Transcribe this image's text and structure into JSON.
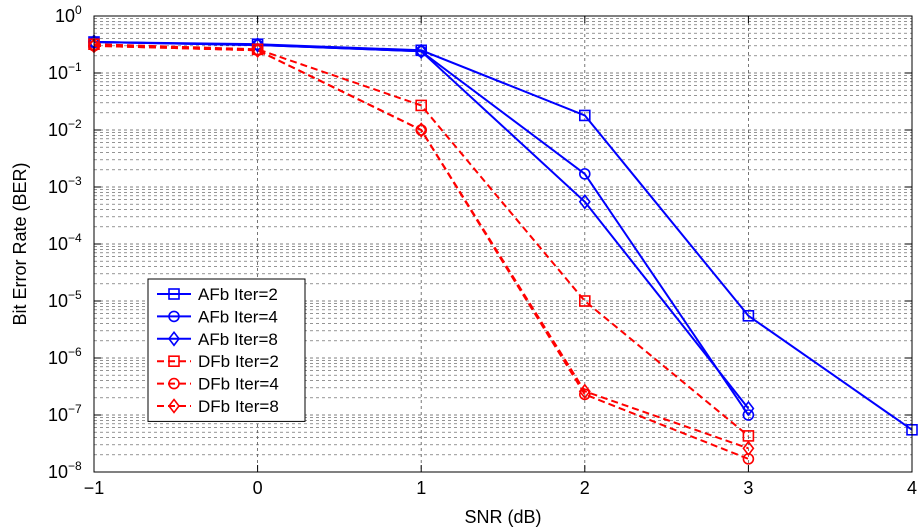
{
  "chart_data": {
    "type": "line",
    "xlabel": "SNR (dB)",
    "ylabel": "Bit Error Rate (BER)",
    "xlim": [
      -1,
      4
    ],
    "ylim": [
      1e-08,
      1
    ],
    "yscale": "log",
    "grid": true,
    "legend_position": "lower-left",
    "x_ticks": [
      -1,
      0,
      1,
      2,
      3,
      4
    ],
    "x_tick_labels": [
      "−1",
      "0",
      "1",
      "2",
      "3",
      "4"
    ],
    "y_tick_exponents": [
      0,
      -1,
      -2,
      -3,
      -4,
      -5,
      -6,
      -7,
      -8
    ],
    "series": [
      {
        "name": "AFb Iter=2",
        "color": "#0000ff",
        "dash": "solid",
        "marker": "square",
        "x": [
          -1,
          0,
          1,
          2,
          3,
          4
        ],
        "y": [
          0.35,
          0.32,
          0.25,
          0.018,
          5.5e-06,
          5.5e-08
        ]
      },
      {
        "name": "AFb Iter=4",
        "color": "#0000ff",
        "dash": "solid",
        "marker": "circle",
        "x": [
          -1,
          0,
          1,
          2,
          3
        ],
        "y": [
          0.35,
          0.31,
          0.24,
          0.0017,
          1e-07
        ]
      },
      {
        "name": "AFb Iter=8",
        "color": "#0000ff",
        "dash": "solid",
        "marker": "diamond",
        "x": [
          -1,
          0,
          1,
          2,
          3
        ],
        "y": [
          0.35,
          0.31,
          0.24,
          0.00055,
          1.3e-07
        ]
      },
      {
        "name": "DFb Iter=2",
        "color": "#ff0000",
        "dash": "dashed",
        "marker": "square",
        "x": [
          -1,
          0,
          1,
          2,
          3
        ],
        "y": [
          0.32,
          0.26,
          0.027,
          1e-05,
          4.3e-08
        ]
      },
      {
        "name": "DFb Iter=4",
        "color": "#ff0000",
        "dash": "dashed",
        "marker": "circle",
        "x": [
          -1,
          0,
          1,
          2,
          3
        ],
        "y": [
          0.3,
          0.25,
          0.01,
          2.3e-07,
          1.7e-08
        ]
      },
      {
        "name": "DFb Iter=8",
        "color": "#ff0000",
        "dash": "dashed",
        "marker": "diamond",
        "x": [
          -1,
          0,
          1,
          2,
          3
        ],
        "y": [
          0.3,
          0.25,
          0.01,
          2.6e-07,
          2.6e-08
        ]
      }
    ]
  }
}
